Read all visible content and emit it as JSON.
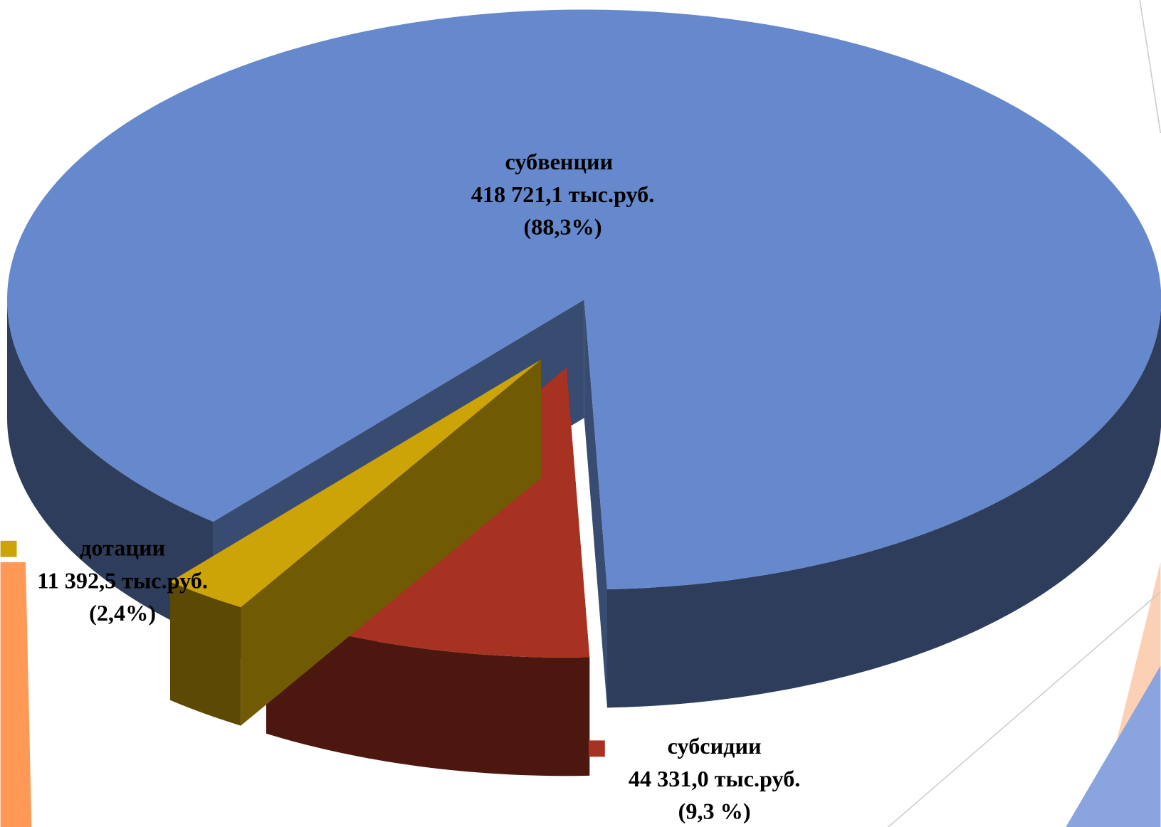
{
  "chart_data": {
    "type": "pie3d",
    "categories": [
      "субвенции",
      "субсидии",
      "дотации"
    ],
    "values": [
      418721.1,
      44331.0,
      11392.5
    ],
    "value_labels": [
      "418 721,1 тыс.руб.",
      "44 331,0 тыс.руб.",
      "11 392,5 тыс.руб."
    ],
    "percents": [
      88.3,
      9.3,
      2.4
    ],
    "percent_labels": [
      "(88,3%)",
      "(9,3 %)",
      "(2,4%)"
    ],
    "colors": [
      "#6688cc",
      "#a83222",
      "#cca408"
    ]
  }
}
